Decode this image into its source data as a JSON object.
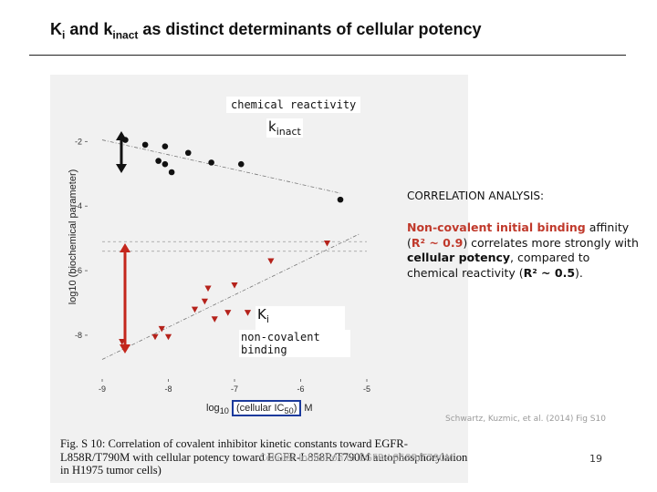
{
  "slide": {
    "title_prefix": "K",
    "title_prefix_sub": "i",
    "title_mid": " and k",
    "title_mid_sub": "inact",
    "title_suffix": " as distinct determinants of cellular potency",
    "page_number": "19",
    "citation": "Schwartz, Kuzmic, et al. (2014) Fig S10"
  },
  "annotations": {
    "chemical_reactivity": "chemical reactivity",
    "kinact_k": "k",
    "kinact_sub": "inact",
    "ki_k": "K",
    "ki_sub": "i",
    "noncovalent_binding": "non-covalent binding"
  },
  "correlation": {
    "heading": "CORRELATION ANALYSIS:",
    "part1": "Non-covalent initial binding",
    "part2": " affinity (",
    "r2_binding": "R² ~ 0.9",
    "part3": ") correlates more strongly with ",
    "cellular_potency": "cellular potency",
    "part4": ", compared to chemical reactivity (",
    "r2_reactivity": "R² ~ 0.5",
    "part5": ")."
  },
  "figure": {
    "y_axis_label": "log10 (biochemical parameter)",
    "x_axis_label_prefix": "log",
    "x_axis_label_sub": "10",
    "x_axis_label_boxed": "(cellular IC",
    "x_axis_label_boxed_sub": "50",
    "x_axis_label_boxed_close": ")",
    "x_axis_label_suffix": " M",
    "caption": "Fig. S 10: Correlation of covalent inhibitor kinetic constants toward EGFR-L858R/T790M with cellular potency toward EGFR-L858R/T790M autophosphorylation in H1975 tumor cells)",
    "caption_ghost": "Cellular Inhibition of EGFR-L858R/T790M"
  },
  "chart_data": {
    "type": "scatter",
    "xlabel": "log10 (cellular IC50) M",
    "ylabel": "log10 (biochemical parameter)",
    "x_ticks": [
      "-9",
      "-8",
      "-7",
      "-6",
      "-5"
    ],
    "y_ticks": [
      "-2",
      "-4",
      "-6",
      "-8"
    ],
    "xlim": [
      -9.0,
      -5.0
    ],
    "ylim": [
      -9.3,
      -1.2
    ],
    "series": [
      {
        "name": "kinact",
        "marker": "circle",
        "color": "#111111",
        "points": [
          [
            -8.65,
            -1.95
          ],
          [
            -8.35,
            -2.1
          ],
          [
            -8.15,
            -2.6
          ],
          [
            -7.7,
            -2.35
          ],
          [
            -7.35,
            -2.65
          ],
          [
            -6.9,
            -2.7
          ],
          [
            -8.05,
            -2.15
          ],
          [
            -8.05,
            -2.7
          ],
          [
            -7.95,
            -2.95
          ],
          [
            -5.4,
            -3.8
          ]
        ],
        "trendline": [
          [
            -9.0,
            -1.95
          ],
          [
            -5.4,
            -3.6
          ]
        ]
      },
      {
        "name": "Ki",
        "marker": "triangle-down",
        "color": "#b5221b",
        "points": [
          [
            -8.7,
            -8.2
          ],
          [
            -8.2,
            -8.05
          ],
          [
            -8.0,
            -8.05
          ],
          [
            -7.6,
            -7.2
          ],
          [
            -7.3,
            -7.5
          ],
          [
            -6.8,
            -7.3
          ],
          [
            -7.45,
            -6.95
          ],
          [
            -7.4,
            -6.55
          ],
          [
            -7.0,
            -6.45
          ],
          [
            -6.45,
            -5.7
          ],
          [
            -5.6,
            -5.15
          ],
          [
            -7.1,
            -7.3
          ],
          [
            -8.1,
            -7.8
          ]
        ],
        "trendline": [
          [
            -9.0,
            -8.75
          ],
          [
            -5.1,
            -4.85
          ]
        ]
      }
    ],
    "reference_lines": [
      -5.1,
      -5.4
    ],
    "grid": false
  }
}
